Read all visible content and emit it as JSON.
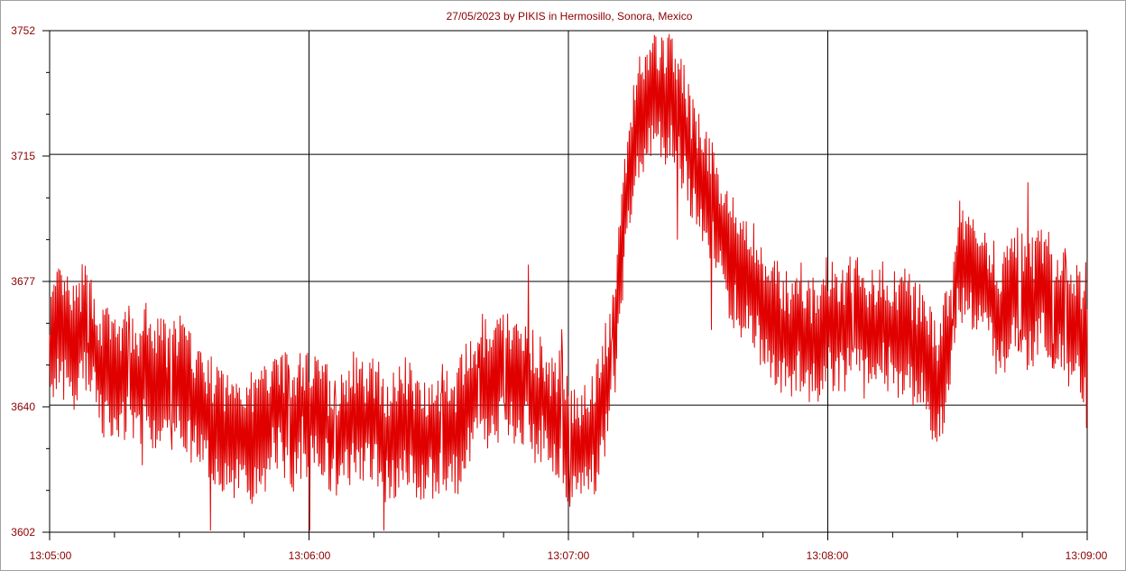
{
  "chart_data": {
    "type": "line",
    "title": "27/05/2023  by  PIKIS  in  Hermosillo, Sonora, Mexico",
    "xlabel": "",
    "ylabel": "",
    "x_ticks": [
      "13:05:00",
      "13:06:00",
      "13:07:00",
      "13:08:00",
      "13:09:00"
    ],
    "y_ticks": [
      "3752",
      "3715",
      "3677",
      "3640",
      "3602"
    ],
    "xlim_seconds_after_13_05": [
      0,
      240
    ],
    "ylim": [
      3602,
      3752
    ],
    "grid": true,
    "line_color": "#e00000",
    "series": [
      {
        "x": [
          0,
          2,
          4,
          6,
          8,
          10,
          12,
          14,
          16,
          18,
          20,
          22,
          24,
          26,
          28,
          30,
          32,
          34,
          36,
          38,
          40,
          42,
          44,
          46,
          48,
          50,
          52,
          54,
          56,
          58,
          60,
          62,
          64,
          66,
          68,
          70,
          72,
          74,
          76,
          78,
          80,
          82,
          84,
          86,
          88,
          90,
          92,
          94,
          96,
          98,
          100,
          102,
          104,
          106,
          108,
          110,
          112,
          114,
          116,
          118,
          120,
          122,
          124,
          126,
          128,
          130,
          132,
          134,
          136,
          138,
          140,
          142,
          144,
          146,
          148,
          150,
          152,
          154,
          156,
          158,
          160,
          162,
          164,
          166,
          168,
          170,
          172,
          174,
          176,
          178,
          180,
          182,
          184,
          186,
          188,
          190,
          192,
          194,
          196,
          198,
          200,
          202,
          204,
          206,
          208,
          210,
          212,
          214,
          216,
          218,
          220,
          222,
          224,
          226,
          228,
          230,
          232,
          234,
          236,
          238,
          240
        ],
        "y": [
          3655,
          3662,
          3660,
          3656,
          3664,
          3658,
          3650,
          3651,
          3647,
          3649,
          3644,
          3652,
          3646,
          3648,
          3643,
          3650,
          3643,
          3641,
          3636,
          3634,
          3632,
          3630,
          3634,
          3630,
          3631,
          3634,
          3642,
          3638,
          3632,
          3638,
          3637,
          3640,
          3636,
          3630,
          3631,
          3637,
          3633,
          3636,
          3634,
          3630,
          3631,
          3636,
          3632,
          3630,
          3631,
          3632,
          3634,
          3631,
          3638,
          3642,
          3648,
          3643,
          3648,
          3650,
          3646,
          3648,
          3643,
          3641,
          3634,
          3638,
          3630,
          3626,
          3630,
          3632,
          3642,
          3652,
          3678,
          3710,
          3726,
          3730,
          3733,
          3731,
          3734,
          3726,
          3715,
          3708,
          3703,
          3700,
          3688,
          3683,
          3680,
          3678,
          3672,
          3668,
          3664,
          3660,
          3662,
          3664,
          3658,
          3660,
          3666,
          3661,
          3664,
          3668,
          3662,
          3660,
          3666,
          3664,
          3660,
          3662,
          3658,
          3656,
          3650,
          3646,
          3660,
          3681,
          3682,
          3678,
          3676,
          3672,
          3666,
          3672,
          3674,
          3669,
          3672,
          3675,
          3670,
          3670,
          3664,
          3662,
          3652
        ],
        "noise": [
          0,
          14,
          -12,
          18,
          -8,
          22,
          -20,
          10,
          -6,
          24,
          -18,
          9,
          -14,
          30,
          -22,
          12,
          -10,
          16,
          -24,
          20,
          -8,
          14,
          -26,
          18,
          -12,
          22,
          -20,
          28,
          -16,
          10,
          -22,
          18,
          -14,
          24,
          -10,
          8,
          -18,
          26,
          -20,
          12,
          -16,
          22,
          -24,
          14,
          -12,
          20,
          -18,
          10,
          -22,
          16,
          -14,
          24,
          -20,
          30,
          -12,
          18,
          -22,
          10,
          -16,
          28,
          -24,
          12,
          -20,
          26,
          -18,
          14,
          -22,
          10,
          -16,
          20,
          -12,
          24,
          -18,
          12,
          -20,
          16,
          -24,
          22,
          -14,
          10,
          -18,
          26,
          -22,
          14,
          -16,
          20,
          -24,
          12,
          -18,
          28,
          -20,
          10,
          -16,
          22,
          -12,
          18,
          -24,
          30,
          -14,
          10,
          -20,
          16,
          -22,
          26,
          -18,
          12,
          -16,
          24,
          -20,
          14,
          -12,
          22,
          -24,
          18,
          -10,
          16,
          -20,
          26,
          -14,
          12,
          -18
        ]
      }
    ]
  }
}
